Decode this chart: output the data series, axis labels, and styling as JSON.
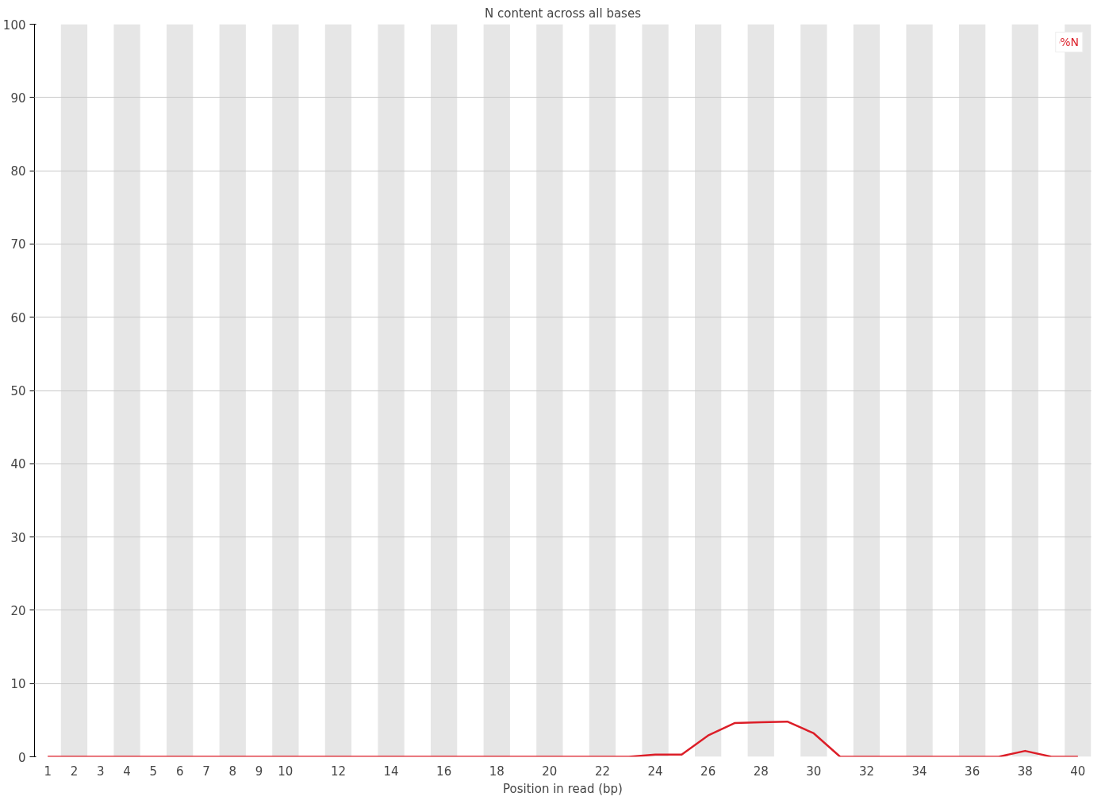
{
  "chart_data": {
    "type": "line",
    "title": "N content across all bases",
    "xlabel": "Position in read (bp)",
    "x": [
      1,
      2,
      3,
      4,
      5,
      6,
      7,
      8,
      9,
      10,
      11,
      12,
      13,
      14,
      15,
      16,
      17,
      18,
      19,
      20,
      21,
      22,
      23,
      24,
      25,
      26,
      27,
      28,
      29,
      30,
      31,
      32,
      33,
      34,
      35,
      36,
      37,
      38,
      39,
      40
    ],
    "series": [
      {
        "name": "%N",
        "color": "#dc1e28",
        "values": [
          0,
          0,
          0,
          0,
          0,
          0,
          0,
          0,
          0,
          0,
          0,
          0,
          0,
          0,
          0,
          0,
          0,
          0,
          0,
          0,
          0,
          0,
          0,
          0.3,
          0.3,
          2.9,
          4.6,
          4.7,
          4.8,
          3.2,
          0,
          0,
          0,
          0,
          0,
          0,
          0,
          0.8,
          0,
          0
        ]
      }
    ],
    "xlim": [
      0.5,
      40.5
    ],
    "xticks": [
      1,
      2,
      3,
      4,
      5,
      6,
      7,
      8,
      9,
      10,
      12,
      14,
      16,
      18,
      20,
      22,
      24,
      26,
      28,
      30,
      32,
      34,
      36,
      38,
      40
    ],
    "ylim": [
      0,
      100
    ],
    "yticks": [
      0,
      10,
      20,
      30,
      40,
      50,
      60,
      70,
      80,
      90,
      100
    ],
    "bands": [
      {
        "axis": "x",
        "from": 1.5,
        "to": 2.5,
        "color": "#e6e6e6"
      },
      {
        "axis": "x",
        "from": 3.5,
        "to": 4.5,
        "color": "#e6e6e6"
      },
      {
        "axis": "x",
        "from": 5.5,
        "to": 6.5,
        "color": "#e6e6e6"
      },
      {
        "axis": "x",
        "from": 7.5,
        "to": 8.5,
        "color": "#e6e6e6"
      },
      {
        "axis": "x",
        "from": 9.5,
        "to": 10.5,
        "color": "#e6e6e6"
      },
      {
        "axis": "x",
        "from": 11.5,
        "to": 12.5,
        "color": "#e6e6e6"
      },
      {
        "axis": "x",
        "from": 13.5,
        "to": 14.5,
        "color": "#e6e6e6"
      },
      {
        "axis": "x",
        "from": 15.5,
        "to": 16.5,
        "color": "#e6e6e6"
      },
      {
        "axis": "x",
        "from": 17.5,
        "to": 18.5,
        "color": "#e6e6e6"
      },
      {
        "axis": "x",
        "from": 19.5,
        "to": 20.5,
        "color": "#e6e6e6"
      },
      {
        "axis": "x",
        "from": 21.5,
        "to": 22.5,
        "color": "#e6e6e6"
      },
      {
        "axis": "x",
        "from": 23.5,
        "to": 24.5,
        "color": "#e6e6e6"
      },
      {
        "axis": "x",
        "from": 25.5,
        "to": 26.5,
        "color": "#e6e6e6"
      },
      {
        "axis": "x",
        "from": 27.5,
        "to": 28.5,
        "color": "#e6e6e6"
      },
      {
        "axis": "x",
        "from": 29.5,
        "to": 30.5,
        "color": "#e6e6e6"
      },
      {
        "axis": "x",
        "from": 31.5,
        "to": 32.5,
        "color": "#e6e6e6"
      },
      {
        "axis": "x",
        "from": 33.5,
        "to": 34.5,
        "color": "#e6e6e6"
      },
      {
        "axis": "x",
        "from": 35.5,
        "to": 36.5,
        "color": "#e6e6e6"
      },
      {
        "axis": "x",
        "from": 37.5,
        "to": 38.5,
        "color": "#e6e6e6"
      },
      {
        "axis": "x",
        "from": 39.5,
        "to": 40.5,
        "color": "#e6e6e6"
      }
    ],
    "grid": "y",
    "legend": "top right",
    "marker": "none",
    "line_style": "solid"
  }
}
